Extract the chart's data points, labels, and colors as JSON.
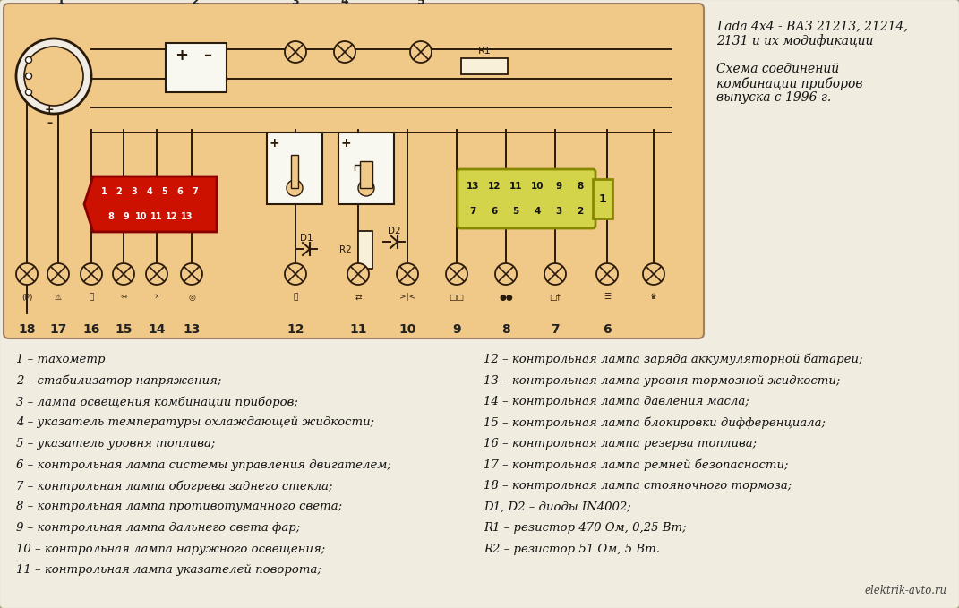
{
  "title_line1": "Lada 4x4 - ВАЗ 21213, 21214,",
  "title_line2": "2131 и их модификации",
  "title_line3": "Схема соединений",
  "title_line4": "комбинации приборов",
  "title_line5": "выпуска с 1996 г.",
  "watermark": "elektrik-avto.ru",
  "left_legend": [
    "1 – тахометр",
    "2 – стабилизатор напряжения;",
    "3 – лампа освещения комбинации приборов;",
    "4 – указатель температуры охлаждающей жидкости;",
    "5 – указатель уровня топлива;",
    "6 – контрольная лампа системы управления двигателем;",
    "7 – контрольная лампа обогрева заднего стекла;",
    "8 – контрольная лампа противотуманного света;",
    "9 – контрольная лампа дальнего света фар;",
    "10 – контрольная лампа наружного освещения;",
    "11 – контрольная лампа указателей поворота;"
  ],
  "right_legend": [
    "12 – контрольная лампа заряда аккумуляторной батареи;",
    "13 – контрольная лампа уровня тормозной жидкости;",
    "14 – контрольная лампа давления масла;",
    "15 – контрольная лампа блокировки дифференциала;",
    "16 – контрольная лампа резерва топлива;",
    "17 – контрольная лампа ремней безопасности;",
    "18 – контрольная лампа стояночного тормоза;",
    "D1, D2 – диоды IN4002;",
    "R1 – резистор 470 Ом, 0,25 Вт;",
    "R2 – резистор 51 Ом, 5 Вт."
  ],
  "page_bg": "#c8a878",
  "outer_fill": "#f0ece0",
  "diag_fill": "#f0c888",
  "diag_border": "#a08060"
}
